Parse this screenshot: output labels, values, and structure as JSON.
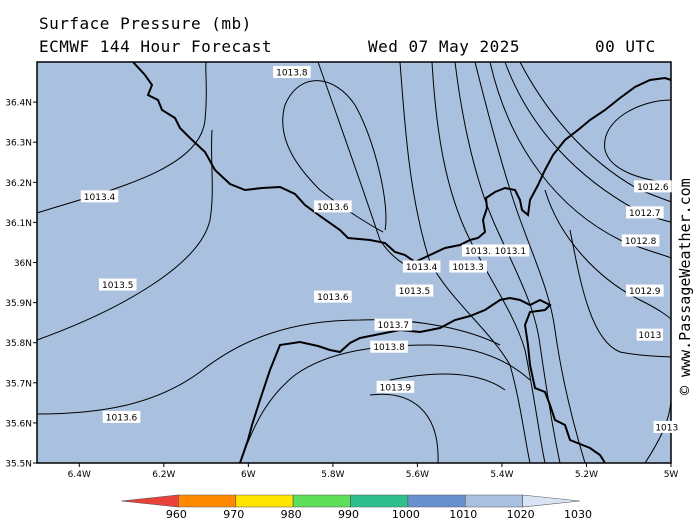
{
  "header": {
    "title": "Surface Pressure (mb)",
    "model": "ECMWF 144 Hour Forecast",
    "date": "Wed 07 May 2025",
    "time": "00 UTC"
  },
  "credit": "© www.PassageWeather.com",
  "colors": {
    "sea": "#a9c0df",
    "isobar": "#000000",
    "coast": "#000000"
  },
  "map": {
    "lat_ticks": [
      "36.4N",
      "36.3N",
      "36.2N",
      "36.1N",
      "36N",
      "35.9N",
      "35.8N",
      "35.7N",
      "35.6N",
      "35.5N"
    ],
    "lon_ticks": [
      "6.4W",
      "6.2W",
      "6W",
      "5.8W",
      "5.6W",
      "5.4W",
      "5.2W",
      "5W"
    ],
    "isobar_labels": [
      {
        "text": "1013.8",
        "lon": -5.897,
        "lat": 36.475
      },
      {
        "text": "1013.4",
        "lon": -6.352,
        "lat": 36.165
      },
      {
        "text": "1013.6",
        "lon": -5.8,
        "lat": 36.14
      },
      {
        "text": "1013.5",
        "lon": -6.309,
        "lat": 35.945
      },
      {
        "text": "1013.6",
        "lon": -5.8,
        "lat": 35.915
      },
      {
        "text": "1013.7",
        "lon": -5.657,
        "lat": 35.845
      },
      {
        "text": "1013.8",
        "lon": -5.667,
        "lat": 35.79
      },
      {
        "text": "1013.9",
        "lon": -5.652,
        "lat": 35.69
      },
      {
        "text": "1013.6",
        "lon": -6.3,
        "lat": 35.615
      },
      {
        "text": "1013.4",
        "lon": -5.59,
        "lat": 35.99
      },
      {
        "text": "1013.5",
        "lon": -5.607,
        "lat": 35.93
      },
      {
        "text": "1013.3",
        "lon": -5.48,
        "lat": 35.99
      },
      {
        "text": "1013.2",
        "lon": -5.45,
        "lat": 36.03
      },
      {
        "text": "1013.1",
        "lon": -5.38,
        "lat": 36.03
      },
      {
        "text": "1012.6",
        "lon": -5.043,
        "lat": 36.19
      },
      {
        "text": "1012.7",
        "lon": -5.062,
        "lat": 36.125
      },
      {
        "text": "1012.8",
        "lon": -5.072,
        "lat": 36.055
      },
      {
        "text": "1012.9",
        "lon": -5.062,
        "lat": 35.93
      },
      {
        "text": "1013",
        "lon": -5.05,
        "lat": 35.82
      },
      {
        "text": "1013",
        "lon": -5.01,
        "lat": 35.59
      }
    ]
  },
  "colorbar": {
    "labels": [
      "960",
      "970",
      "980",
      "990",
      "1000",
      "1010",
      "1020",
      "1030"
    ],
    "colors": [
      "#e8423a",
      "#ff8a00",
      "#ffe400",
      "#5fe05a",
      "#2fbf8f",
      "#6a91cf",
      "#a9c0df",
      "#d8e4f4"
    ]
  }
}
